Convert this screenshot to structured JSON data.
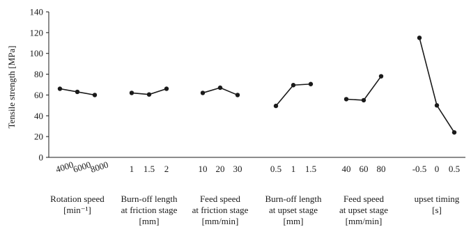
{
  "chart_data": {
    "type": "line",
    "ylabel": "Tensile strength [MPa]",
    "xlabel": "",
    "ylim": [
      0,
      140
    ],
    "yticks": [
      0,
      20,
      40,
      60,
      80,
      100,
      120,
      140
    ],
    "grid": false,
    "line_color": "#1a1a1a",
    "groups": [
      {
        "label_lines": [
          "Rotation speed",
          "[min⁻¹]"
        ],
        "ticks": [
          "4000",
          "6000",
          "8000"
        ],
        "values": [
          66,
          63,
          60
        ]
      },
      {
        "label_lines": [
          "Burn-off length",
          "at friction stage",
          "[mm]"
        ],
        "ticks": [
          "1",
          "1.5",
          "2"
        ],
        "values": [
          62,
          60.5,
          66
        ]
      },
      {
        "label_lines": [
          "Feed speed",
          "at friction stage",
          "[mm/min]"
        ],
        "ticks": [
          "10",
          "20",
          "30"
        ],
        "values": [
          62,
          67,
          60
        ]
      },
      {
        "label_lines": [
          "Burn-off length",
          "at upset stage",
          "[mm]"
        ],
        "ticks": [
          "0.5",
          "1",
          "1.5"
        ],
        "values": [
          49.5,
          69.5,
          70.5
        ]
      },
      {
        "label_lines": [
          "Feed speed",
          "at upset stage",
          "[mm/min]"
        ],
        "ticks": [
          "40",
          "60",
          "80"
        ],
        "values": [
          56,
          55,
          78
        ]
      },
      {
        "label_lines": [
          "upset timing",
          "[s]"
        ],
        "ticks": [
          "-0.5",
          "0",
          "0.5"
        ],
        "values": [
          115,
          50,
          24
        ]
      }
    ]
  }
}
